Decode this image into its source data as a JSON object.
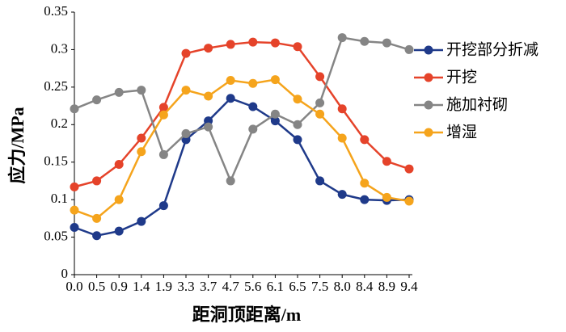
{
  "chart_data": {
    "type": "line",
    "x_label": "距洞顶距离/m",
    "y_label": "应力/MPa",
    "categories": [
      "0.0",
      "0.5",
      "0.9",
      "1.4",
      "1.9",
      "3.3",
      "3.7",
      "4.7",
      "5.6",
      "6.1",
      "6.5",
      "7.5",
      "8.0",
      "8.4",
      "8.9",
      "9.4"
    ],
    "series": [
      {
        "name": "开挖部分折减",
        "color": "#1f3a8a",
        "values": [
          0.063,
          0.052,
          0.058,
          0.071,
          0.092,
          0.18,
          0.205,
          0.235,
          0.224,
          0.205,
          0.18,
          0.125,
          0.107,
          0.1,
          0.099,
          0.1
        ]
      },
      {
        "name": "开挖",
        "color": "#e5432a",
        "values": [
          0.117,
          0.125,
          0.147,
          0.182,
          0.223,
          0.295,
          0.302,
          0.307,
          0.31,
          0.309,
          0.304,
          0.264,
          0.221,
          0.18,
          0.151,
          0.141
        ]
      },
      {
        "name": "施加衬砌",
        "color": "#858585",
        "values": [
          0.221,
          0.233,
          0.243,
          0.246,
          0.16,
          0.188,
          0.197,
          0.125,
          0.194,
          0.214,
          0.2,
          0.229,
          0.316,
          0.311,
          0.309,
          0.3
        ]
      },
      {
        "name": "增湿",
        "color": "#f5a41c",
        "values": [
          0.086,
          0.075,
          0.1,
          0.164,
          0.213,
          0.246,
          0.238,
          0.259,
          0.255,
          0.26,
          0.234,
          0.214,
          0.182,
          0.122,
          0.103,
          0.098
        ]
      }
    ],
    "ylim": [
      0,
      0.35
    ],
    "yticks": [
      0,
      0.05,
      0.1,
      0.15,
      0.2,
      0.25,
      0.3,
      0.35
    ],
    "grid": false,
    "legend": "right"
  }
}
